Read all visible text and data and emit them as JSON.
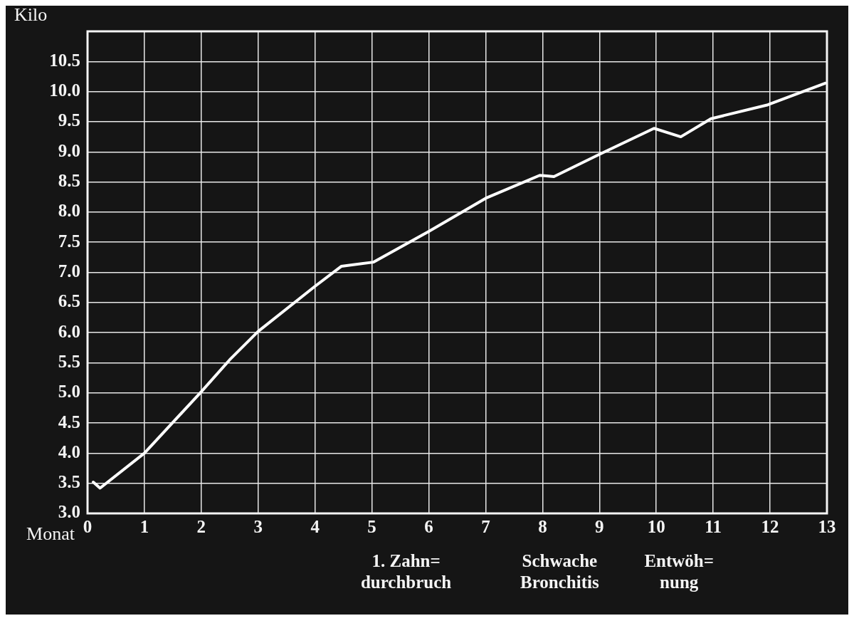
{
  "chart_data": {
    "type": "line",
    "ylabel": "Kilo",
    "xlabel": "Monat",
    "color": "#ffffff",
    "x": [
      0.1,
      0.22,
      1,
      2,
      2.5,
      3,
      4,
      4.46,
      5.03,
      6,
      7,
      7.95,
      8.2,
      8.98,
      9.96,
      10.43,
      10.96,
      11.96,
      12.97
    ],
    "values": [
      3.52,
      3.42,
      4.0,
      5.02,
      5.55,
      6.02,
      6.77,
      7.1,
      7.17,
      7.68,
      8.23,
      8.61,
      8.59,
      8.95,
      9.39,
      9.25,
      9.55,
      9.78,
      10.14
    ],
    "xlim": [
      0,
      13
    ],
    "xticks": [
      0,
      1,
      2,
      3,
      4,
      5,
      6,
      7,
      8,
      9,
      10,
      11,
      12,
      13
    ],
    "ylim": [
      3,
      11
    ],
    "yticks": [
      {
        "value": 3,
        "label": "3.0"
      },
      {
        "value": 3.5,
        "label": "3.5"
      },
      {
        "value": 4,
        "label": "4.0"
      },
      {
        "value": 4.5,
        "label": "4.5"
      },
      {
        "value": 5,
        "label": "5.0"
      },
      {
        "value": 5.5,
        "label": "5.5"
      },
      {
        "value": 6,
        "label": "6.0"
      },
      {
        "value": 6.5,
        "label": "6.5"
      },
      {
        "value": 7,
        "label": "7.0"
      },
      {
        "value": 7.5,
        "label": "7.5"
      },
      {
        "value": 8,
        "label": "8.0"
      },
      {
        "value": 8.5,
        "label": "8.5"
      },
      {
        "value": 9,
        "label": "9.0"
      },
      {
        "value": 9.5,
        "label": "9.5"
      },
      {
        "value": 10,
        "label": "10.0"
      },
      {
        "value": 10.5,
        "label": "10.5"
      }
    ],
    "annotations": [
      "1. Zahn=\ndurchbruch",
      "Schwache\nBronchitis",
      "Entwöh=\nnung"
    ],
    "grid": true,
    "marker": "none",
    "line_style": "solid",
    "legend": false
  }
}
